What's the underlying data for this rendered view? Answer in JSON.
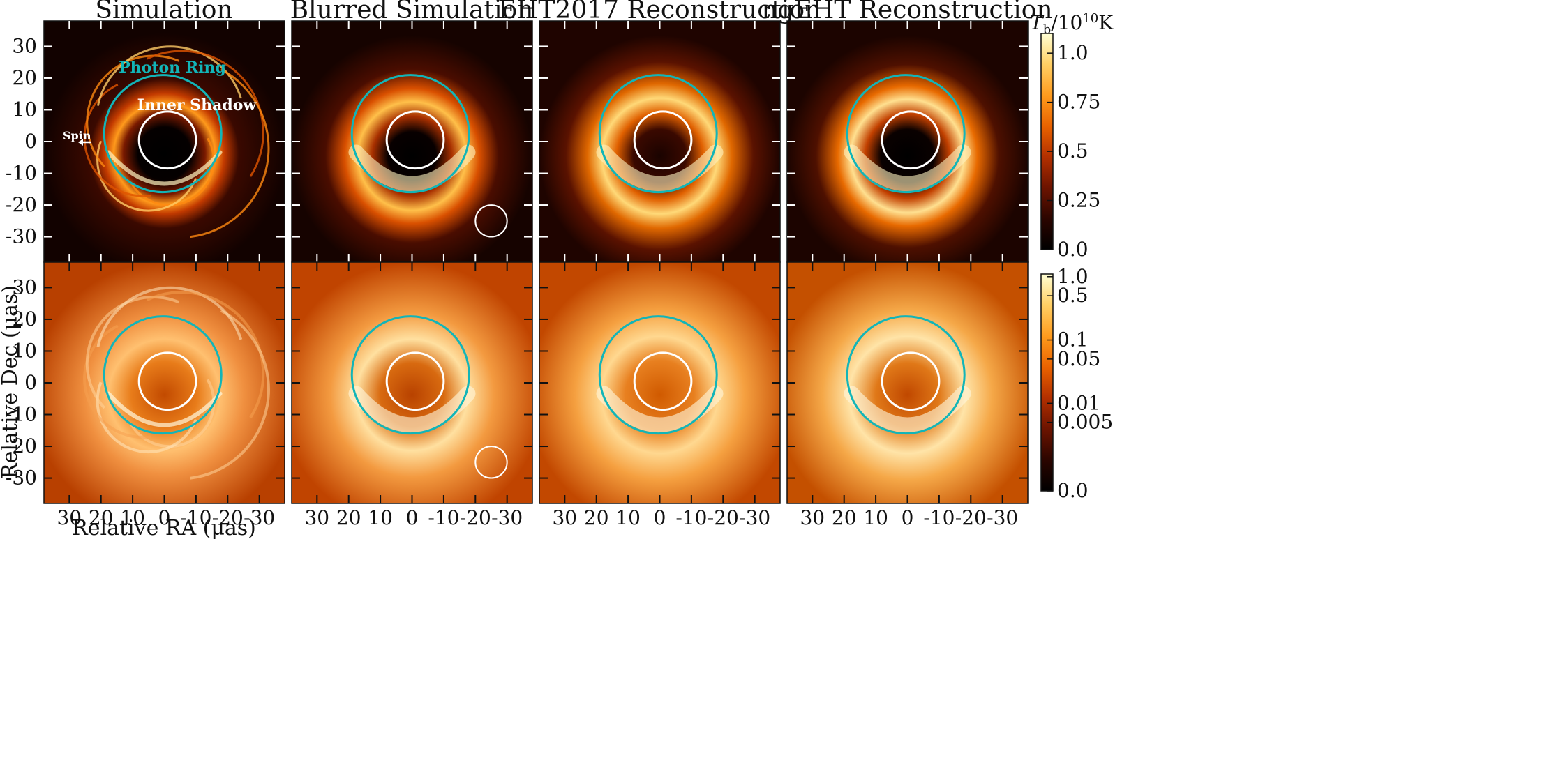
{
  "panel_titles": [
    "Simulation",
    "Blurred Simulation",
    "EHT2017 Reconstruction",
    "ngEHT Reconstruction"
  ],
  "axes": {
    "xlabel": "Relative RA (μas)",
    "ylabel": "Relative Dec (μas)",
    "x_ticks": [
      "30",
      "20",
      "10",
      "0",
      "-10",
      "-20",
      "-30"
    ],
    "y_ticks": [
      "30",
      "20",
      "10",
      "0",
      "-10",
      "-20",
      "-30"
    ],
    "x_range": [
      38,
      -38
    ],
    "y_range": [
      -38,
      38
    ]
  },
  "annotations": {
    "photon_ring": "Photon Ring",
    "inner_shadow": "Inner Shadow",
    "spin": "Spin"
  },
  "overlays": {
    "photon_ring": {
      "center": [
        0.5,
        2.5
      ],
      "radius": 18.5,
      "color": "#12b5b8"
    },
    "inner_shadow": {
      "center": [
        -1.0,
        0.5
      ],
      "radius": 9.0,
      "color": "#ffffff"
    },
    "beam": {
      "center": [
        -25.0,
        -25.0
      ],
      "radius": 5.0,
      "color": "#ffffff"
    }
  },
  "colorbar_top": {
    "label_main": "T",
    "label_sub": "b",
    "label_rest": "/10",
    "label_exp": "10",
    "label_unit": "K",
    "ticks": [
      {
        "label": "1.0",
        "value": 1.0
      },
      {
        "label": "0.75",
        "value": 0.75
      },
      {
        "label": "0.5",
        "value": 0.5
      },
      {
        "label": "0.25",
        "value": 0.25
      },
      {
        "label": "0.0",
        "value": 0.0
      }
    ],
    "range": [
      0.0,
      1.1
    ],
    "scale": "linear"
  },
  "colorbar_bottom": {
    "ticks": [
      {
        "label": "1.0",
        "value": 1.0
      },
      {
        "label": "0.5",
        "value": 0.5
      },
      {
        "label": "0.1",
        "value": 0.1
      },
      {
        "label": "0.05",
        "value": 0.05
      },
      {
        "label": "0.01",
        "value": 0.01
      },
      {
        "label": "0.005",
        "value": 0.005
      },
      {
        "label": "0.0",
        "value": 0.0
      }
    ],
    "range": [
      0.0,
      1.1
    ],
    "scale": "log-like"
  },
  "colormap": [
    "#000000",
    "#2a0500",
    "#6e1400",
    "#b33000",
    "#e96200",
    "#ff9a1c",
    "#ffd066",
    "#ffffd4"
  ]
}
